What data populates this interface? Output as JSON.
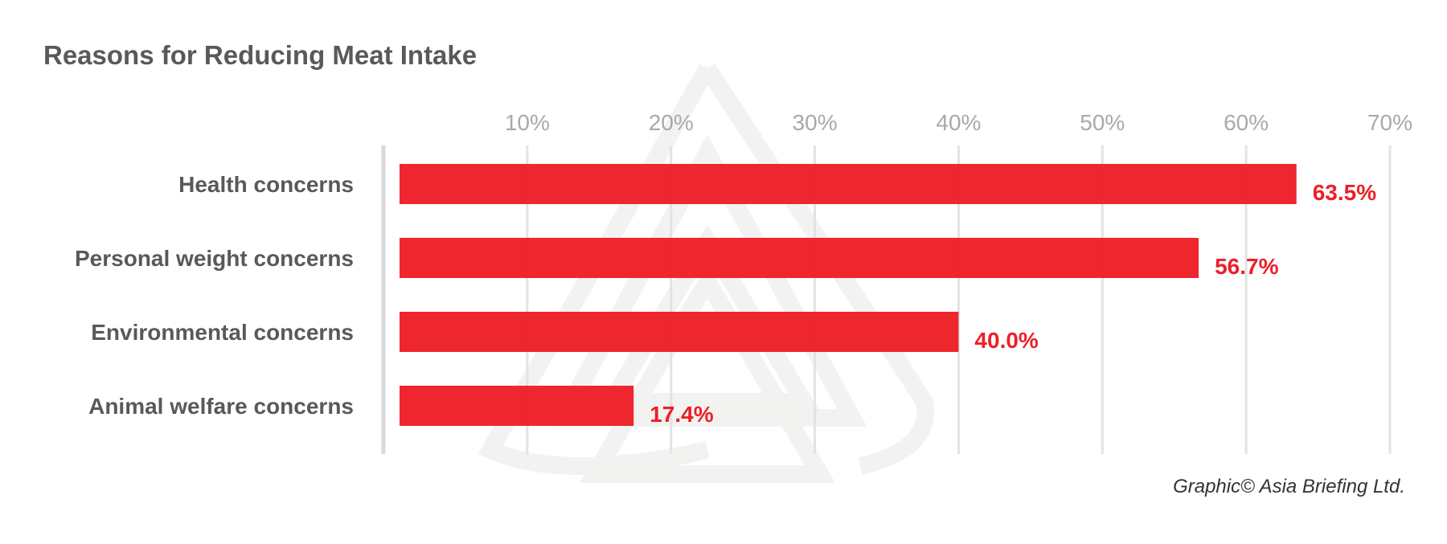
{
  "chart_data": {
    "type": "bar",
    "orientation": "horizontal",
    "title": "Reasons for Reducing Meat Intake",
    "categories": [
      "Health concerns",
      "Personal weight concerns",
      "Environmental concerns",
      "Animal welfare concerns"
    ],
    "values": [
      63.5,
      56.7,
      40.0,
      17.4
    ],
    "value_labels": [
      "63.5%",
      "56.7%",
      "40.0%",
      "17.4%"
    ],
    "xlim": [
      0,
      70
    ],
    "ticks": [
      10,
      20,
      30,
      40,
      50,
      60,
      70
    ],
    "tick_labels": [
      "10%",
      "20%",
      "30%",
      "40%",
      "50%",
      "60%",
      "70%"
    ],
    "tick_position": "top",
    "grid": true,
    "bar_color": "#ed1f27",
    "xlabel": "",
    "ylabel": ""
  },
  "credit": "Graphic© Asia Briefing Ltd."
}
